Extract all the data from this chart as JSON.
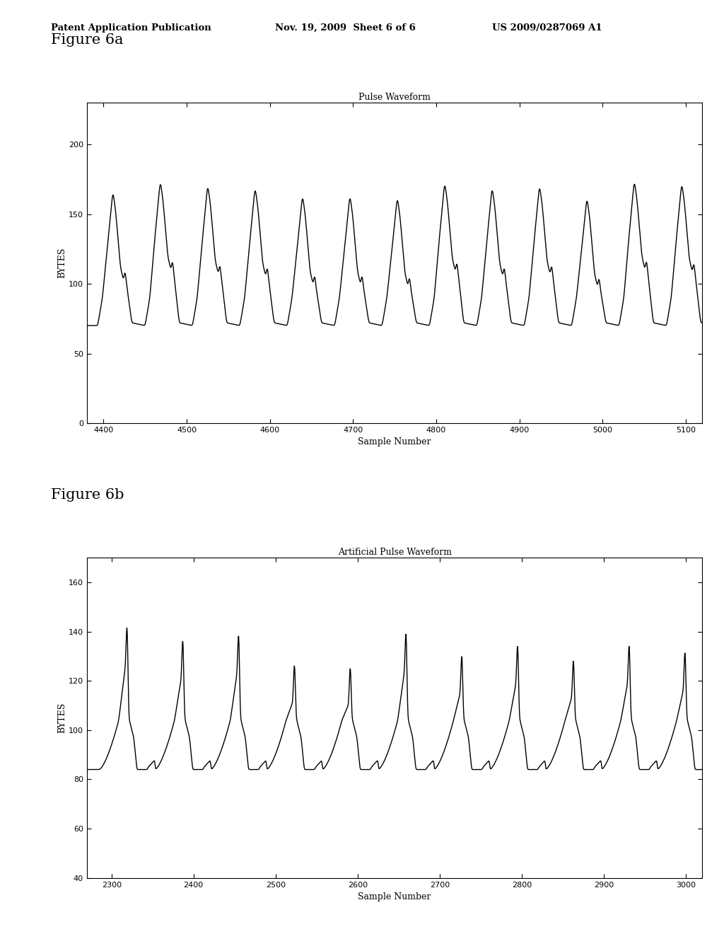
{
  "fig6a_title": "Pulse Waveform",
  "fig6b_title": "Artificial Pulse Waveform",
  "fig6a_xlabel": "Sample Number",
  "fig6b_xlabel": "Sample Number",
  "ylabel": "BYTES",
  "fig6a_xlim": [
    4380,
    5120
  ],
  "fig6a_ylim": [
    0,
    230
  ],
  "fig6b_xlim": [
    2270,
    3020
  ],
  "fig6b_ylim": [
    40,
    170
  ],
  "fig6a_xticks": [
    4400,
    4500,
    4600,
    4700,
    4800,
    4900,
    5000,
    5100
  ],
  "fig6b_xticks": [
    2300,
    2400,
    2500,
    2600,
    2700,
    2800,
    2900,
    3000
  ],
  "fig6a_yticks": [
    0,
    50,
    100,
    150,
    200
  ],
  "fig6b_yticks": [
    40,
    60,
    80,
    100,
    120,
    140,
    160
  ],
  "fig6a_label": "Figure 6a",
  "fig6b_label": "Figure 6b",
  "header_left": "Patent Application Publication",
  "header_mid": "Nov. 19, 2009  Sheet 6 of 6",
  "header_right": "US 2009/0287069 A1",
  "bg_color": "#ffffff",
  "line_color": "#000000",
  "line_width": 1.0
}
